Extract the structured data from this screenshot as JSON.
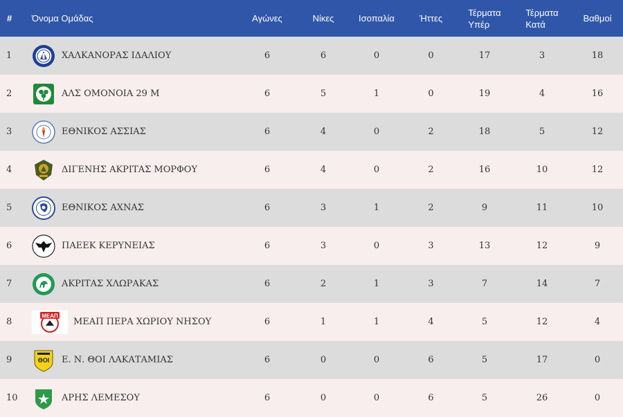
{
  "headers": {
    "num": "#",
    "team": "Όνομα Ομάδας",
    "played": "Αγώνες",
    "wins": "Νίκες",
    "draws": "Ισοπαλία",
    "losses": "Ήττες",
    "goals_for": [
      "Τέρματα",
      "Υπέρ"
    ],
    "goals_against": [
      "Τέρματα",
      "Κατά"
    ],
    "points": "Βαθμοί"
  },
  "colors": {
    "header_bg": "#2f56a9",
    "row_odd": "#dcdcdc",
    "row_even": "#f9eeee"
  },
  "rows": [
    {
      "pos": "1",
      "team": "ΧΑΛΚΑΝΟΡΑΣ ΙΔΑΛΙΟΥ",
      "played": "6",
      "wins": "6",
      "draws": "0",
      "losses": "0",
      "gf": "17",
      "ga": "3",
      "pts": "18",
      "logo": "chalkanoras-crest-icon"
    },
    {
      "pos": "2",
      "team": "ΑΛΣ ΟΜΟΝΟΙΑ 29 Μ",
      "played": "6",
      "wins": "5",
      "draws": "1",
      "losses": "0",
      "gf": "19",
      "ga": "4",
      "pts": "16",
      "logo": "omonoia-clover-crest-icon"
    },
    {
      "pos": "3",
      "team": "ΕΘΝΙΚΟΣ ΑΣΣΙΑΣ",
      "played": "6",
      "wins": "4",
      "draws": "0",
      "losses": "2",
      "gf": "18",
      "ga": "5",
      "pts": "12",
      "logo": "ethnikos-assias-crest-icon"
    },
    {
      "pos": "4",
      "team": "ΔΙΓΕΝΗΣ ΑΚΡΙΤΑΣ ΜΟΡΦΟΥ",
      "played": "6",
      "wins": "4",
      "draws": "0",
      "losses": "2",
      "gf": "16",
      "ga": "10",
      "pts": "12",
      "logo": "digenis-crest-icon"
    },
    {
      "pos": "5",
      "team": "ΕΘΝΙΚΟΣ ΑΧΝΑΣ",
      "played": "6",
      "wins": "3",
      "draws": "1",
      "losses": "2",
      "gf": "9",
      "ga": "11",
      "pts": "10",
      "logo": "ethnikos-achnas-crest-icon"
    },
    {
      "pos": "6",
      "team": "ΠΑΕΕΚ ΚΕΡΥΝΕΙΑΣ",
      "played": "6",
      "wins": "3",
      "draws": "0",
      "losses": "3",
      "gf": "13",
      "ga": "12",
      "pts": "9",
      "logo": "paeek-eagle-crest-icon"
    },
    {
      "pos": "7",
      "team": "ΑΚΡΙΤΑΣ ΧΛΩΡΑΚΑΣ",
      "played": "6",
      "wins": "2",
      "draws": "1",
      "losses": "3",
      "gf": "7",
      "ga": "14",
      "pts": "7",
      "logo": "akritas-horse-crest-icon"
    },
    {
      "pos": "8",
      "team": "ΜΕΑΠ ΠΕΡΑ ΧΩΡΙΟΥ ΝΗΣΟΥ",
      "played": "6",
      "wins": "1",
      "draws": "1",
      "losses": "4",
      "gf": "5",
      "ga": "12",
      "pts": "4",
      "logo": "meap-crest-icon",
      "logo_text": "ΜΕΑΠ"
    },
    {
      "pos": "9",
      "team": "Ε. Ν. ΘΟΙ ΛΑΚΑΤΑΜΙΑΣ",
      "played": "6",
      "wins": "0",
      "draws": "0",
      "losses": "6",
      "gf": "5",
      "ga": "17",
      "pts": "0",
      "logo": "thoi-shield-crest-icon",
      "logo_text": "ΘΟΙ"
    },
    {
      "pos": "10",
      "team": "ΑΡΗΣ ΛΕΜΕΣΟΥ",
      "played": "6",
      "wins": "0",
      "draws": "0",
      "losses": "6",
      "gf": "5",
      "ga": "26",
      "pts": "0",
      "logo": "aris-star-crest-icon"
    }
  ]
}
